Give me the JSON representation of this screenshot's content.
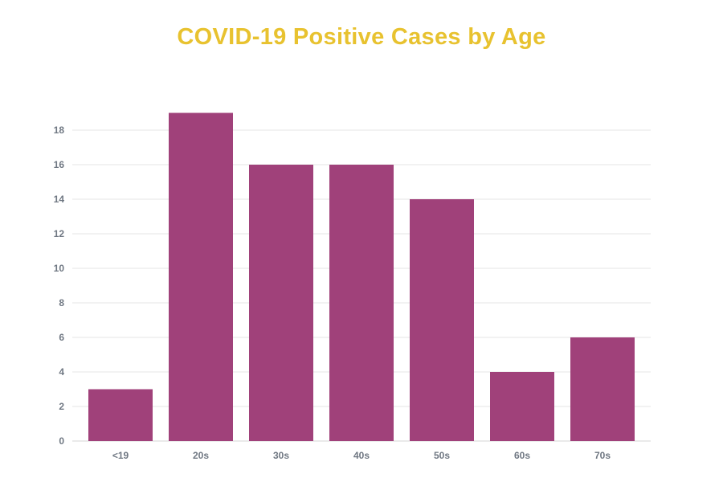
{
  "chart_data": {
    "type": "bar",
    "title": "COVID-19 Positive Cases by Age",
    "xlabel": "",
    "ylabel": "",
    "categories": [
      "<19",
      "20s",
      "30s",
      "40s",
      "50s",
      "60s",
      "70s"
    ],
    "values": [
      3,
      19,
      16,
      16,
      14,
      4,
      6
    ],
    "ylim": [
      0,
      18
    ],
    "yticks": [
      "0",
      "2",
      "4",
      "6",
      "8",
      "10",
      "12",
      "14",
      "16",
      "18"
    ],
    "grid": true,
    "legend": "none",
    "bar_color": "#a0417a",
    "title_color": "#e8c22f",
    "grid_color": "#e6e6e6",
    "tick_color": "#6f7782"
  }
}
